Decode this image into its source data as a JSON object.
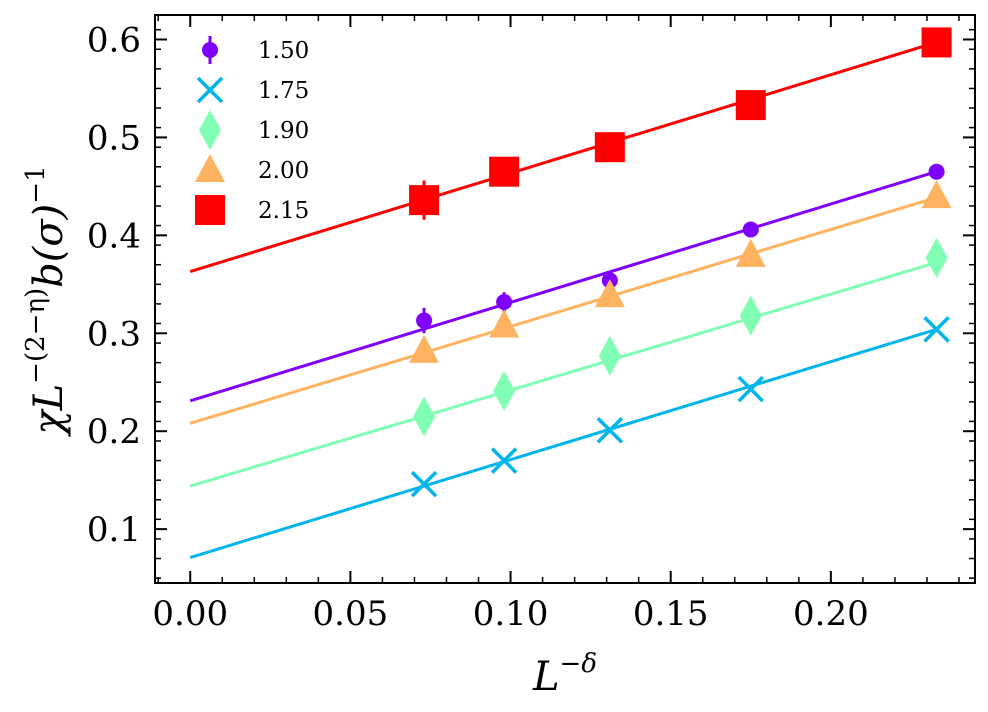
{
  "chart_data": {
    "type": "scatter",
    "title": "",
    "xlabel": "L^-δ",
    "xlabel_base": "L",
    "xlabel_sup": "−δ",
    "ylabel": "χL^-(2-η) b(σ)^-1",
    "ylabel_parts": {
      "chi": "χ",
      "L": "L",
      "sup": "−(2−η)",
      "b": "b(σ)",
      "sup2": "−1"
    },
    "xlim": [
      -0.011,
      0.245
    ],
    "ylim": [
      0.045,
      0.625
    ],
    "xticks": [
      0.0,
      0.05,
      0.1,
      0.15,
      0.2
    ],
    "xtick_labels": [
      "0.00",
      "0.05",
      "0.10",
      "0.15",
      "0.20"
    ],
    "yticks": [
      0.1,
      0.2,
      0.3,
      0.4,
      0.5,
      0.6
    ],
    "ytick_labels": [
      "0.1",
      "0.2",
      "0.3",
      "0.4",
      "0.5",
      "0.6"
    ],
    "x": [
      0.073,
      0.098,
      0.131,
      0.175,
      0.233
    ],
    "legend_position": "top-left",
    "series": [
      {
        "name": "1.50",
        "color": "#8000ff",
        "marker": "circle",
        "values": [
          0.313,
          0.332,
          0.354,
          0.406,
          0.465
        ],
        "errors": [
          0.013,
          0.01,
          0.006,
          0.004,
          0.003
        ],
        "fit": {
          "intercept": 0.231,
          "slope": 1.005
        }
      },
      {
        "name": "1.75",
        "color": "#00b5eb",
        "marker": "x",
        "values": [
          0.146,
          0.17,
          0.201,
          0.243,
          0.304
        ],
        "errors": [
          0,
          0,
          0,
          0,
          0
        ],
        "fit": {
          "intercept": 0.071,
          "slope": 1.0
        }
      },
      {
        "name": "1.90",
        "color": "#80ffb4",
        "marker": "diamond",
        "values": [
          0.215,
          0.241,
          0.277,
          0.318,
          0.377
        ],
        "errors": [
          0,
          0,
          0,
          0,
          0
        ],
        "fit": {
          "intercept": 0.144,
          "slope": 0.98
        }
      },
      {
        "name": "2.00",
        "color": "#ffb360",
        "marker": "triangle",
        "values": [
          0.282,
          0.308,
          0.339,
          0.38,
          0.44
        ],
        "errors": [
          0,
          0,
          0,
          0,
          0
        ],
        "fit": {
          "intercept": 0.208,
          "slope": 0.99
        }
      },
      {
        "name": "2.15",
        "color": "#ff0000",
        "marker": "square",
        "values": [
          0.436,
          0.465,
          0.49,
          0.533,
          0.597
        ],
        "errors": [
          0.02,
          0.006,
          0.005,
          0.004,
          0.004
        ],
        "fit": {
          "intercept": 0.363,
          "slope": 1.005
        }
      }
    ]
  }
}
